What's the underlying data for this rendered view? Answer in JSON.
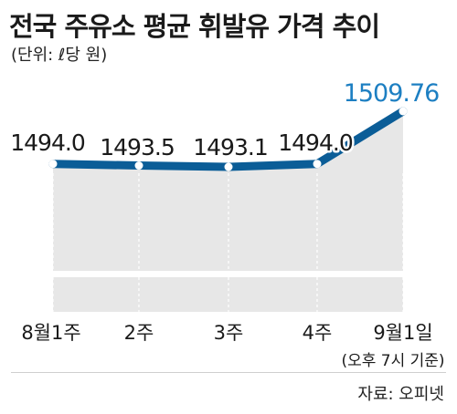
{
  "header": {
    "title": "전국 주유소 평균 휘발유 가격 추이",
    "unit": "(단위: ℓ당 원)"
  },
  "footer": {
    "source": "자료: 오피넷",
    "note": "(오후 7시 기준)"
  },
  "colors": {
    "line": "#0b5d97",
    "highlight": "#1d7fc2",
    "area": "#e7e7e7",
    "baseline_band": "#e7e7e7"
  },
  "chart_data": {
    "type": "line",
    "categories": [
      "8월1주",
      "2주",
      "3주",
      "4주",
      "9월1일"
    ],
    "values": [
      1494.0,
      1493.5,
      1493.1,
      1494.0,
      1509.76
    ],
    "value_labels": [
      "1494.0",
      "1493.5",
      "1493.1",
      "1494.0",
      "1509.76"
    ],
    "title": "전국 주유소 평균 휘발유 가격 추이",
    "ylabel": "",
    "xlabel": "",
    "legend": "none",
    "grid": false
  }
}
